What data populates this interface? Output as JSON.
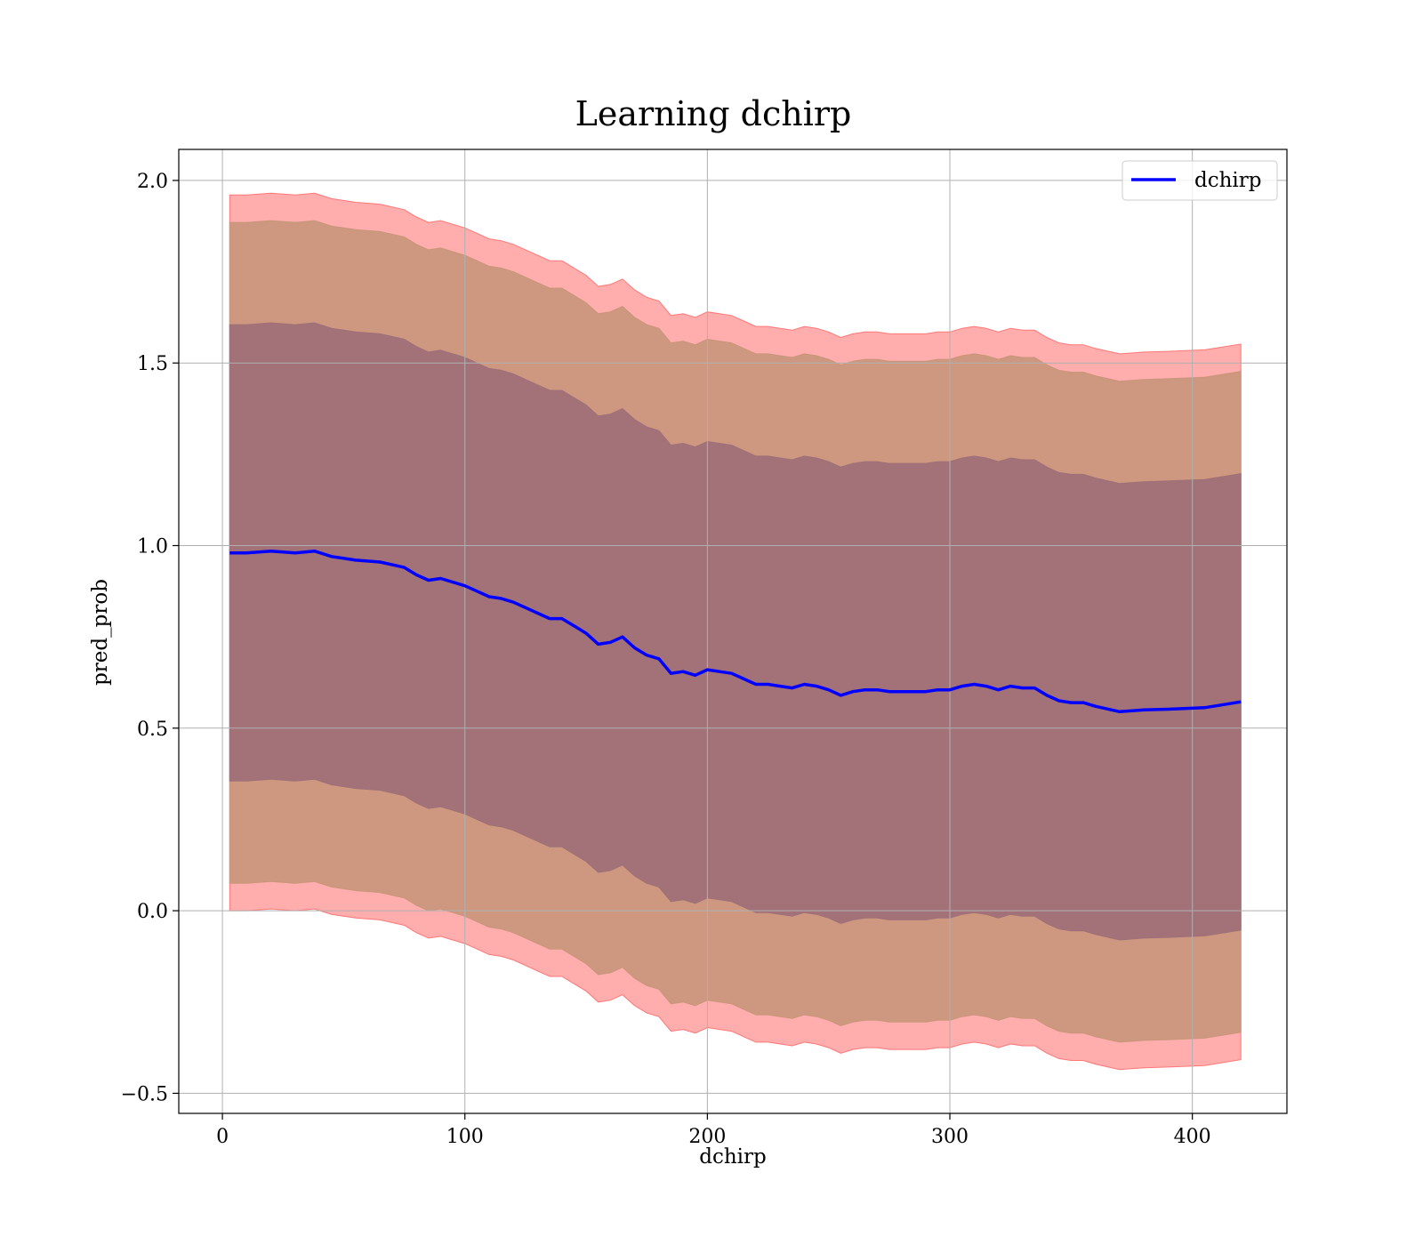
{
  "chart_data": {
    "type": "line",
    "title": "Learning dchirp",
    "xlabel": "dchirp",
    "ylabel": "pred_prob",
    "xlim": [
      -18,
      439
    ],
    "ylim": [
      -0.555,
      2.085
    ],
    "xticks": [
      0,
      100,
      200,
      300,
      400
    ],
    "yticks": [
      -0.5,
      0.0,
      0.5,
      1.0,
      1.5,
      2.0
    ],
    "xtick_labels": [
      "0",
      "100",
      "200",
      "300",
      "400"
    ],
    "ytick_labels": [
      "−0.5",
      "0.0",
      "0.5",
      "1.0",
      "1.5",
      "2.0"
    ],
    "grid": true,
    "legend_position": "top-right",
    "colors": {
      "line": "#0000ff",
      "band_outer": "#ff7777",
      "band_middle": "#c8967a",
      "band_inner": "#a07078"
    },
    "series": [
      {
        "name": "dchirp",
        "x": [
          3,
          10,
          20,
          30,
          38,
          45,
          55,
          65,
          75,
          80,
          85,
          90,
          95,
          100,
          105,
          110,
          115,
          120,
          125,
          130,
          135,
          140,
          145,
          150,
          155,
          160,
          165,
          170,
          175,
          180,
          185,
          190,
          195,
          200,
          205,
          210,
          215,
          220,
          225,
          230,
          235,
          240,
          245,
          250,
          255,
          260,
          265,
          270,
          275,
          280,
          285,
          290,
          295,
          300,
          305,
          310,
          315,
          320,
          325,
          330,
          335,
          340,
          345,
          350,
          355,
          360,
          370,
          380,
          390,
          405,
          420
        ],
        "y": [
          0.98,
          0.98,
          0.985,
          0.98,
          0.985,
          0.97,
          0.96,
          0.955,
          0.94,
          0.92,
          0.905,
          0.91,
          0.9,
          0.89,
          0.875,
          0.86,
          0.855,
          0.845,
          0.83,
          0.815,
          0.8,
          0.8,
          0.78,
          0.76,
          0.73,
          0.735,
          0.75,
          0.72,
          0.7,
          0.69,
          0.65,
          0.655,
          0.645,
          0.66,
          0.655,
          0.65,
          0.635,
          0.62,
          0.62,
          0.615,
          0.61,
          0.62,
          0.615,
          0.605,
          0.59,
          0.6,
          0.605,
          0.605,
          0.6,
          0.6,
          0.6,
          0.6,
          0.605,
          0.605,
          0.615,
          0.62,
          0.615,
          0.605,
          0.615,
          0.61,
          0.61,
          0.59,
          0.575,
          0.57,
          0.57,
          0.56,
          0.545,
          0.55,
          0.552,
          0.556,
          0.572
        ]
      }
    ],
    "bands": [
      {
        "level": "outer",
        "half_width": 0.98
      },
      {
        "level": "middle",
        "half_width": 0.905
      },
      {
        "level": "inner",
        "half_width": 0.625
      }
    ]
  }
}
